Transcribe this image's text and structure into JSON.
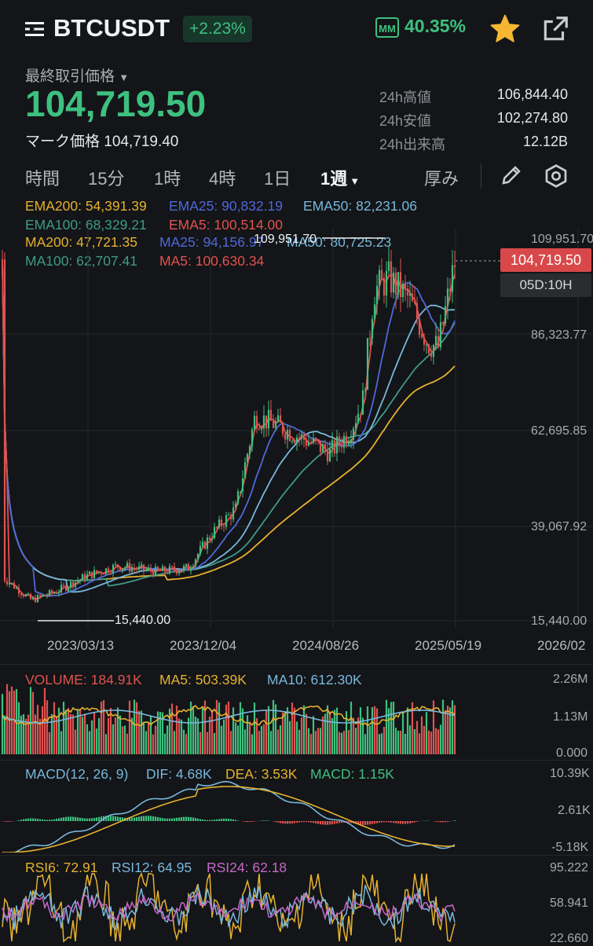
{
  "header": {
    "symbol": "BTCUSDT",
    "change": "+2.23%",
    "mm_label": "MM",
    "mm_value": "40.35%"
  },
  "price": {
    "last_label": "最終取引価格",
    "last_value": "104,719.50",
    "mark_label": "マーク価格 104,719.40"
  },
  "stats": [
    {
      "label": "24h高値",
      "value": "106,844.40"
    },
    {
      "label": "24h安値",
      "value": "102,274.80"
    },
    {
      "label": "24h出来高",
      "value": "12.12B"
    }
  ],
  "intervals": {
    "items": [
      "時間",
      "15分",
      "1時",
      "4時",
      "1日",
      "1週"
    ],
    "active": "1週",
    "depth": "厚み"
  },
  "indicators": {
    "ema200": "EMA200: 54,391.39",
    "ema25": "EMA25: 90,832.19",
    "ema50": "EMA50: 82,231.06",
    "ema100": "EMA100: 68,329.21",
    "ema5": "EMA5: 100,514.00",
    "ma200": "MA200: 47,721.35",
    "ma25": "MA25: 94,156.97",
    "ma50": "MA50: 80,725.23",
    "ma100": "MA100: 62,707.41",
    "ma5": "MA5: 100,630.34"
  },
  "price_axis": [
    "109,951.70",
    "86,323.77",
    "62,695.85",
    "39,067.92",
    "15,440.00"
  ],
  "high_marker": "109,951.70",
  "low_marker": "15,440.00",
  "current_tag": "104,719.50",
  "timer_tag": "05D:10H",
  "time_axis": [
    "2023/03/13",
    "2023/12/04",
    "2024/08/26",
    "2025/05/19",
    "2026/02"
  ],
  "volume": {
    "label": "VOLUME: 184.91K",
    "ma5": "MA5: 503.39K",
    "ma10": "MA10: 612.30K",
    "axis": [
      "2.26M",
      "1.13M",
      "0.000"
    ]
  },
  "macd": {
    "label": "MACD(12, 26, 9)",
    "dif": "DIF: 4.68K",
    "dea": "DEA: 3.53K",
    "macd": "MACD: 1.15K",
    "axis": [
      "10.39K",
      "2.61K",
      "-5.18K"
    ]
  },
  "rsi": {
    "rsi6": "RSI6: 72.91",
    "rsi12": "RSI12: 64.95",
    "rsi24": "RSI24: 62.18",
    "axis": [
      "95.222",
      "58.941",
      "22.660"
    ]
  },
  "colors": {
    "up": "#3ec07f",
    "down": "#e0524f",
    "ema200": "#e6b12f",
    "ema25": "#5068d9",
    "ema50": "#78b7dc",
    "ema100": "#3e9a8a",
    "rsi24": "#c868c9"
  }
}
